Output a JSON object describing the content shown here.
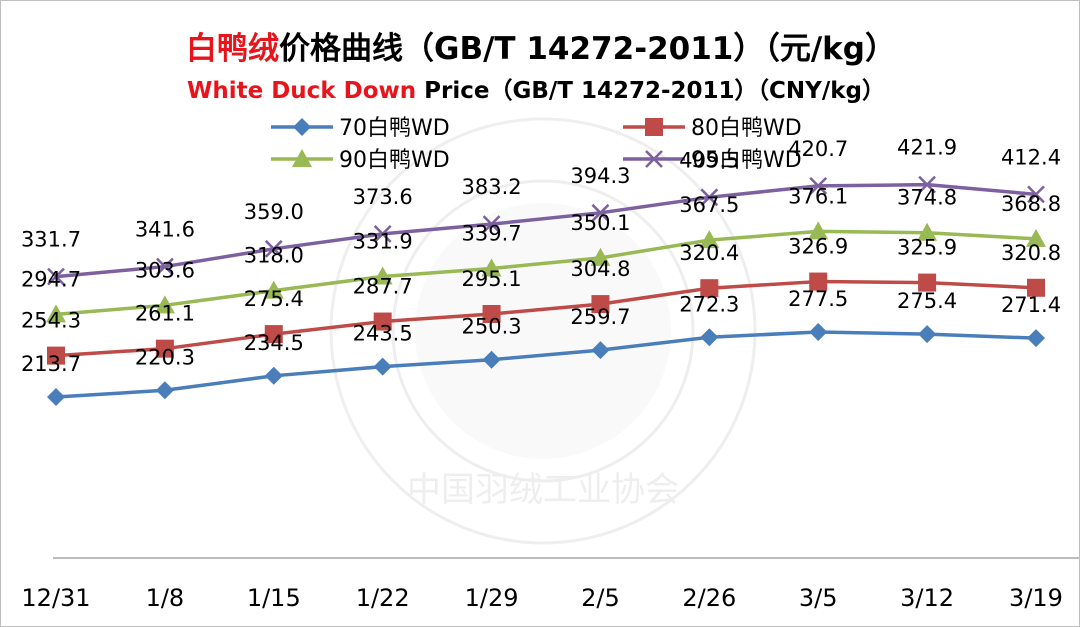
{
  "chart_data": {
    "type": "line",
    "title": {
      "zh_part1": "白鸭绒",
      "zh_part2": "价格曲线（GB/T 14272-2011）（元/kg）",
      "en_part1": "White Duck Down",
      "en_part2": " Price（GB/T 14272-2011）（CNY/kg）"
    },
    "categories": [
      "12/31",
      "1/8",
      "1/15",
      "1/22",
      "1/29",
      "2/5",
      "2/26",
      "3/5",
      "3/12",
      "3/19"
    ],
    "series": [
      {
        "name": "70白鸭WD",
        "color": "#4a7ebb",
        "marker": "diamond",
        "values": [
          213.7,
          220.3,
          234.5,
          243.5,
          250.3,
          259.7,
          272.3,
          277.5,
          275.4,
          271.4
        ]
      },
      {
        "name": "80白鸭WD",
        "color": "#be4b48",
        "marker": "square",
        "values": [
          254.3,
          261.1,
          275.4,
          287.7,
          295.1,
          304.8,
          320.4,
          326.9,
          325.9,
          320.8
        ]
      },
      {
        "name": "90白鸭WD",
        "color": "#98b954",
        "marker": "triangle",
        "values": [
          294.7,
          303.6,
          318.0,
          331.9,
          339.7,
          350.1,
          367.5,
          376.1,
          374.8,
          368.8
        ]
      },
      {
        "name": "95白鸭WD",
        "color": "#7d60a0",
        "marker": "x",
        "values": [
          331.7,
          341.6,
          359.0,
          373.6,
          383.2,
          394.3,
          409.5,
          420.7,
          421.9,
          412.4
        ]
      }
    ],
    "value_labels": [
      [
        "213.7",
        "220.3",
        "234.5",
        "243.5",
        "250.3",
        "259.7",
        "272.3",
        "277.5",
        "275.4",
        "271.4"
      ],
      [
        "254.3",
        "261.1",
        "275.4",
        "287.7",
        "295.1",
        "304.8",
        "320.4",
        "326.9",
        "325.9",
        "320.8"
      ],
      [
        "294.7",
        "303.6",
        "318.0",
        "331.9",
        "339.7",
        "350.1",
        "367.5",
        "376.1",
        "374.8",
        "368.8"
      ],
      [
        "331.7",
        "341.6",
        "359.0",
        "373.6",
        "383.2",
        "394.3",
        "409.5",
        "420.7",
        "421.9",
        "412.4"
      ]
    ],
    "ylim": [
      100,
      450
    ],
    "y_axis_visible": false,
    "grid": false,
    "legend_position": "top",
    "watermark_text": "中国羽绒工业协会"
  }
}
